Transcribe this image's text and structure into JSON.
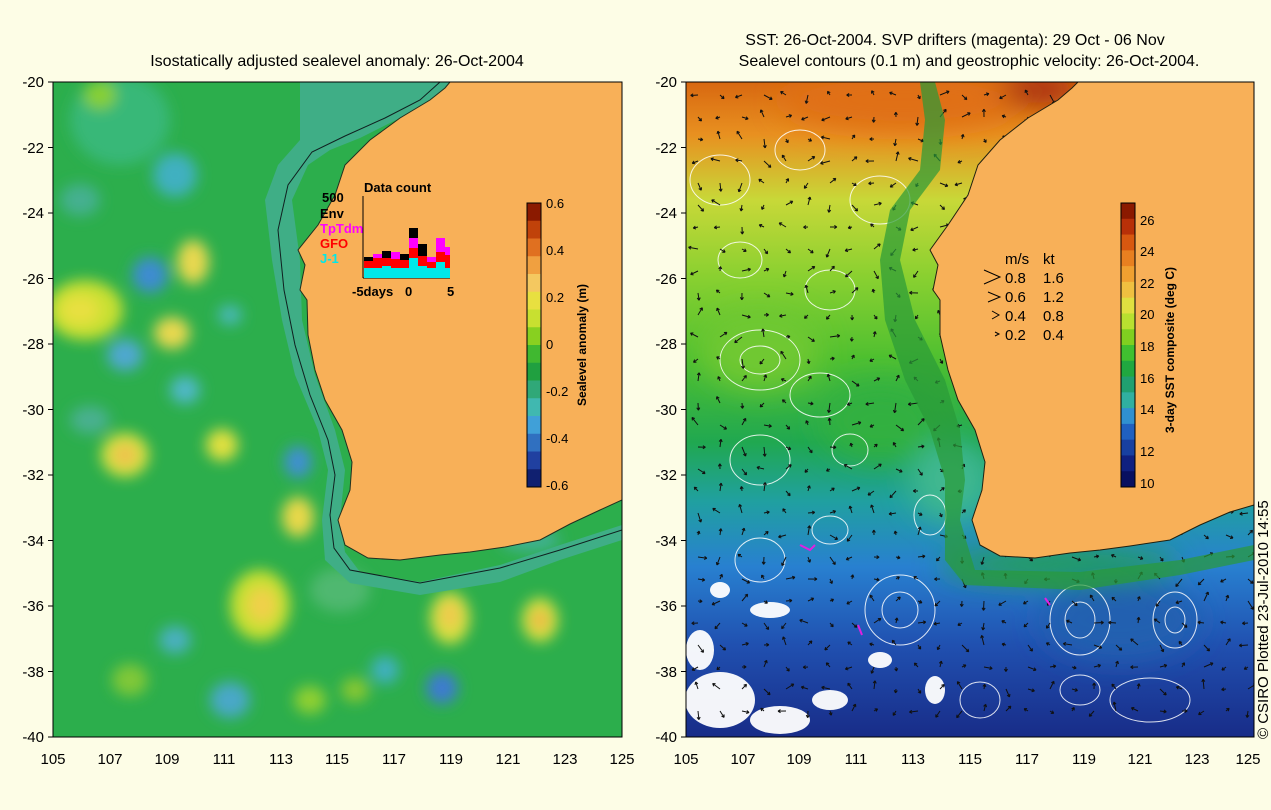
{
  "left_panel": {
    "title": "Isostatically adjusted sealevel anomaly: 26-Oct-2004",
    "y_ticks": [
      "-20",
      "-22",
      "-24",
      "-26",
      "-28",
      "-30",
      "-32",
      "-34",
      "-36",
      "-38",
      "-40"
    ],
    "x_ticks": [
      "105",
      "107",
      "109",
      "111",
      "113",
      "115",
      "117",
      "119",
      "121",
      "123",
      "125"
    ],
    "colorbar": {
      "label": "Sealevel anomaly (m)",
      "ticks": [
        "0.6",
        "0.4",
        "0.2",
        "0",
        "-0.2",
        "-0.4",
        "-0.6"
      ],
      "colors": [
        "#8b1a00",
        "#c0420a",
        "#e07020",
        "#f0a040",
        "#f4c860",
        "#e8e040",
        "#c8e030",
        "#88d020",
        "#40b830",
        "#20a040",
        "#30a878",
        "#40b8b0",
        "#40a0d8",
        "#3070c0",
        "#2040a0",
        "#102070"
      ]
    },
    "inset": {
      "title": "Data count",
      "y_max": "500",
      "legend": [
        {
          "label": "Env",
          "color": "#000000"
        },
        {
          "label": "TpTdm",
          "color": "#ff00ff"
        },
        {
          "label": "GFO",
          "color": "#ff0000"
        },
        {
          "label": "J-1",
          "color": "#00e8e8"
        }
      ],
      "x_left": "-5days",
      "x_mid": "0",
      "x_right": "5"
    }
  },
  "right_panel": {
    "title_line1": "SST: 26-Oct-2004. SVP drifters (magenta): 29 Oct - 06 Nov",
    "title_line2": "Sealevel contours (0.1 m) and geostrophic velocity: 26-Oct-2004.",
    "y_ticks": [
      "-20",
      "-22",
      "-24",
      "-26",
      "-28",
      "-30",
      "-32",
      "-34",
      "-36",
      "-38",
      "-40"
    ],
    "x_ticks": [
      "105",
      "107",
      "109",
      "111",
      "113",
      "115",
      "117",
      "119",
      "121",
      "123",
      "125"
    ],
    "velocity_legend": {
      "header_ms": "m/s",
      "header_kt": "kt",
      "rows": [
        {
          "ms": "0.8",
          "kt": "1.6"
        },
        {
          "ms": "0.6",
          "kt": "1.2"
        },
        {
          "ms": "0.4",
          "kt": "0.8"
        },
        {
          "ms": "0.2",
          "kt": "0.4"
        }
      ]
    },
    "colorbar": {
      "label": "3-day SST composite (deg C)",
      "ticks": [
        "26",
        "24",
        "22",
        "20",
        "18",
        "16",
        "14",
        "12",
        "10"
      ],
      "colors": [
        "#8b1a00",
        "#b83008",
        "#d85810",
        "#e88020",
        "#f0a030",
        "#f0c040",
        "#e0e040",
        "#b8e030",
        "#80d020",
        "#40c030",
        "#20a840",
        "#20a070",
        "#30b0a0",
        "#3090d0",
        "#2060c0",
        "#1840a0",
        "#102080",
        "#081060"
      ]
    }
  },
  "credit": "© CSIRO Plotted 23-Jul-2010 14:55",
  "colors": {
    "background": "#fdfde6",
    "land": "#f8b058",
    "ocean_left": "#28a848",
    "shelf_left": "#40b080"
  }
}
